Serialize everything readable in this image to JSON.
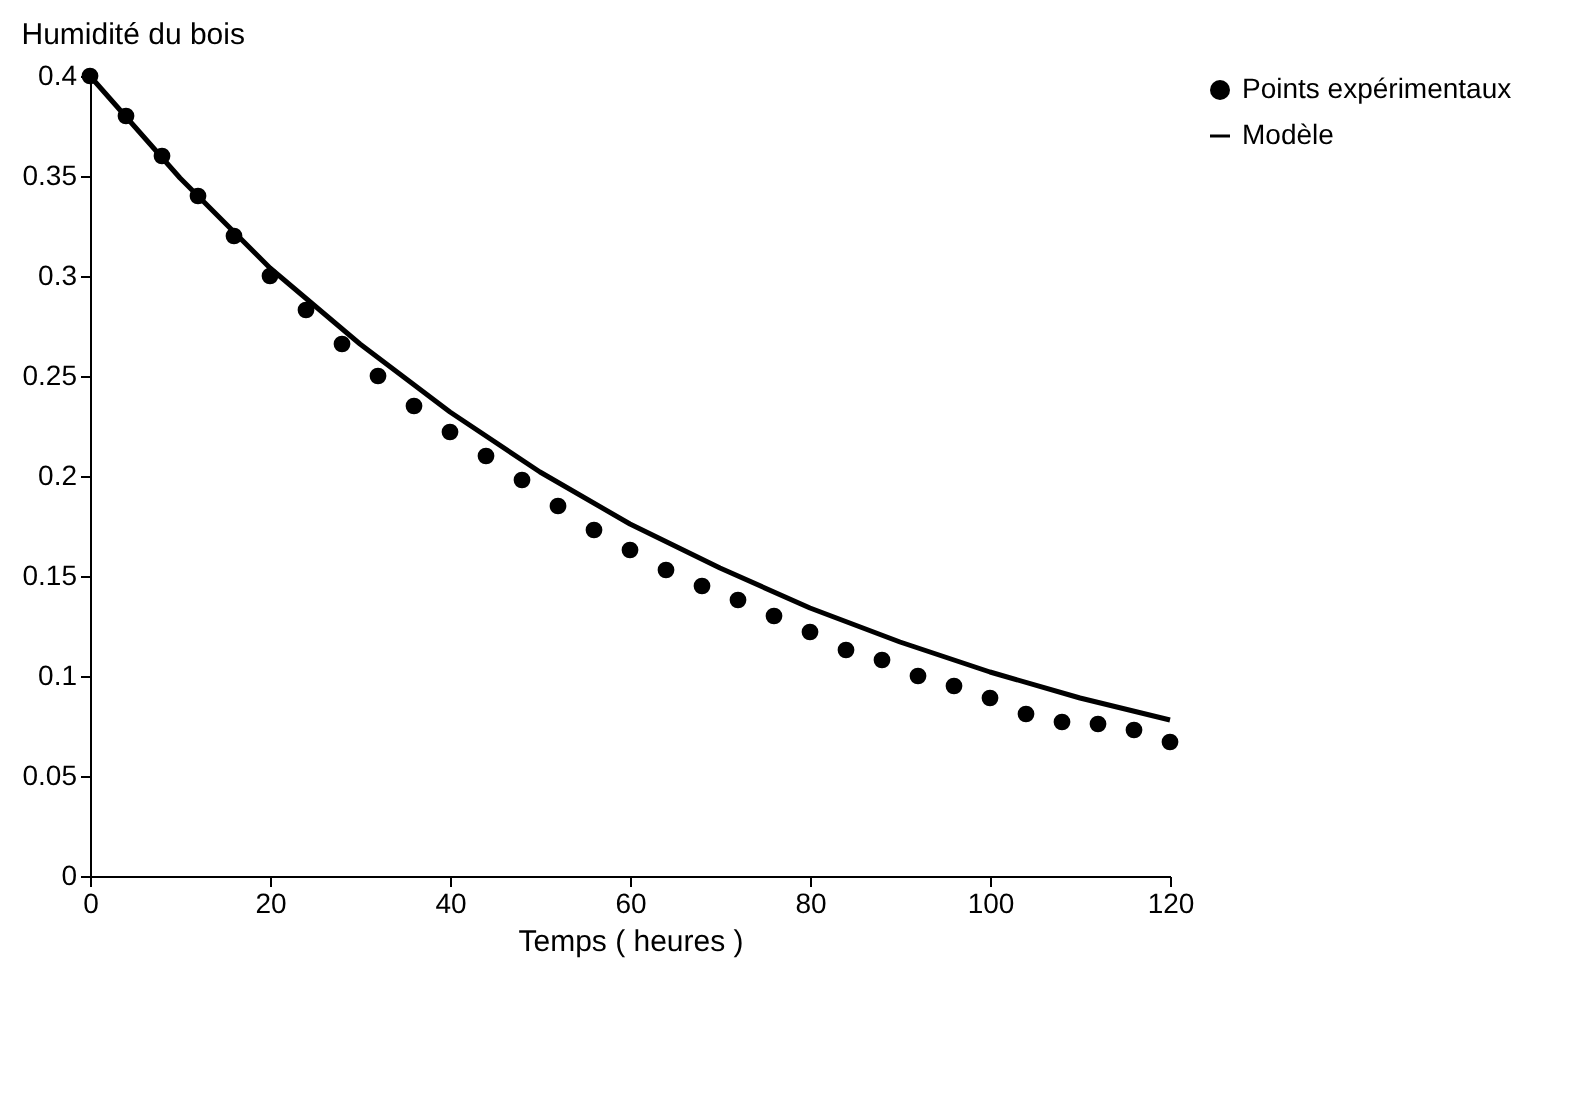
{
  "chart_data": {
    "type": "scatter",
    "title": "Humidité du bois",
    "xlabel": "Temps ( heures )",
    "xlim": [
      0,
      120
    ],
    "xticks": [
      0,
      20,
      40,
      60,
      80,
      100,
      120
    ],
    "ylim": [
      0,
      0.4
    ],
    "yticks": [
      0,
      0.05,
      0.1,
      0.15,
      0.2,
      0.25,
      0.3,
      0.35,
      0.4
    ],
    "grid": false,
    "legend": "right",
    "series": [
      {
        "name": "Points expérimentaux",
        "marker": "circle",
        "color": "#000000",
        "x": [
          0,
          4,
          8,
          12,
          16,
          20,
          24,
          28,
          32,
          36,
          40,
          44,
          48,
          52,
          56,
          60,
          64,
          68,
          72,
          76,
          80,
          84,
          88,
          92,
          96,
          100,
          104,
          108,
          112,
          116,
          120
        ],
        "values": [
          0.4,
          0.38,
          0.36,
          0.34,
          0.32,
          0.3,
          0.283,
          0.266,
          0.25,
          0.235,
          0.222,
          0.21,
          0.198,
          0.185,
          0.173,
          0.163,
          0.153,
          0.145,
          0.138,
          0.13,
          0.122,
          0.113,
          0.108,
          0.1,
          0.095,
          0.089,
          0.081,
          0.077,
          0.076,
          0.073,
          0.067
        ]
      },
      {
        "name": "Modèle",
        "type": "line",
        "line_style": "solid",
        "color": "#000000",
        "x": [
          0,
          10,
          20,
          30,
          40,
          50,
          60,
          70,
          80,
          90,
          100,
          110,
          120
        ],
        "values": [
          0.4,
          0.349,
          0.304,
          0.266,
          0.232,
          0.202,
          0.176,
          0.154,
          0.134,
          0.117,
          0.102,
          0.089,
          0.078
        ]
      }
    ]
  }
}
